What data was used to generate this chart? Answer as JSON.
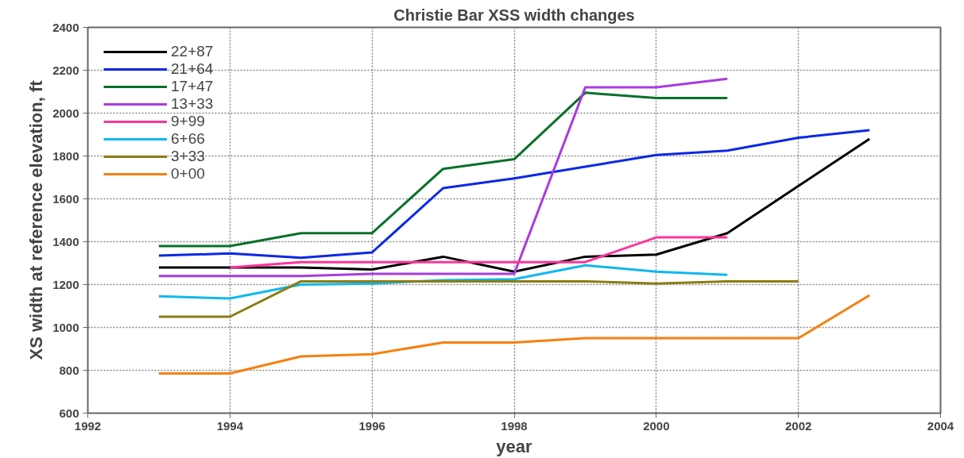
{
  "chart_data": {
    "type": "line",
    "title": "Christie Bar XSS width changes",
    "xlabel": "year",
    "ylabel": "XS width at reference elevation, ft",
    "x": [
      1993,
      1994,
      1995,
      1996,
      1997,
      1998,
      1999,
      2000,
      2001,
      2002,
      2003
    ],
    "series": [
      {
        "name": "22+87",
        "color": "#000000",
        "values": [
          1280,
          1280,
          1280,
          1270,
          1330,
          1260,
          1330,
          1340,
          1440,
          1660,
          1880
        ]
      },
      {
        "name": "21+64",
        "color": "#0a28e6",
        "values": [
          1335,
          1345,
          1325,
          1350,
          1650,
          1695,
          1750,
          1805,
          1825,
          1885,
          1920
        ]
      },
      {
        "name": "17+47",
        "color": "#08702a",
        "x": [
          1993,
          1994,
          1995,
          1996,
          1997,
          1998,
          1999,
          2000,
          2001
        ],
        "values": [
          1380,
          1380,
          1440,
          1440,
          1740,
          1785,
          2095,
          2070,
          2070
        ]
      },
      {
        "name": "13+33",
        "color": "#a83ce0",
        "x": [
          1993,
          1994,
          1995,
          1996,
          1997,
          1998,
          1999,
          2000,
          2001
        ],
        "values": [
          1240,
          1240,
          1240,
          1250,
          1250,
          1250,
          2120,
          2120,
          2160
        ]
      },
      {
        "name": "9+99",
        "color": "#ff3399",
        "x": [
          1994,
          1995,
          1996,
          1997,
          1998,
          1999,
          2000,
          2001
        ],
        "values": [
          1280,
          1305,
          1305,
          1305,
          1305,
          1305,
          1420,
          1420
        ]
      },
      {
        "name": "6+66",
        "color": "#10b8ee",
        "x": [
          1993,
          1994,
          1995,
          1996,
          1997,
          1998,
          1999,
          2000,
          2001
        ],
        "values": [
          1145,
          1135,
          1200,
          1205,
          1220,
          1225,
          1290,
          1260,
          1245
        ]
      },
      {
        "name": "3+33",
        "color": "#8c7c14",
        "x": [
          1993,
          1994,
          1995,
          1996,
          1997,
          1998,
          1999,
          2000,
          2001,
          2002
        ],
        "values": [
          1050,
          1050,
          1215,
          1215,
          1215,
          1215,
          1215,
          1205,
          1215,
          1215
        ]
      },
      {
        "name": "0+00",
        "color": "#f77f10",
        "values": [
          785,
          785,
          865,
          875,
          930,
          930,
          950,
          950,
          950,
          950,
          1150
        ]
      }
    ],
    "xlim": [
      1992,
      2004
    ],
    "xticks": [
      1992,
      1994,
      1996,
      1998,
      2000,
      2002,
      2004
    ],
    "ylim": [
      600,
      2400
    ],
    "yticks": [
      600,
      800,
      1000,
      1200,
      1400,
      1600,
      1800,
      2000,
      2200,
      2400
    ],
    "grid": true,
    "legend": "top left",
    "marker": "none",
    "line_style": "solid"
  }
}
